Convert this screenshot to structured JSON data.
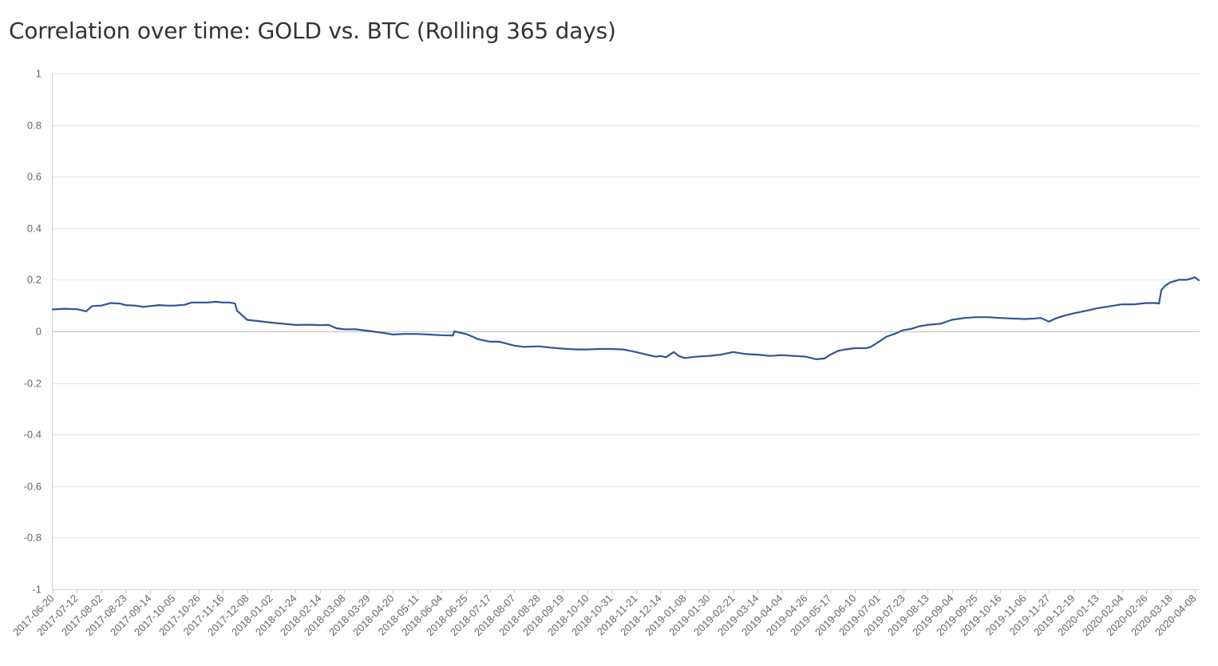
{
  "chart_data": {
    "type": "line",
    "title": "Correlation over time: GOLD vs. BTC (Rolling 365 days)",
    "xlabel": "",
    "ylabel": "",
    "ylim": [
      -1,
      1
    ],
    "yticks": [
      1,
      0.8,
      0.6,
      0.4,
      0.2,
      0,
      -0.2,
      -0.4,
      -0.6,
      -0.8,
      -1
    ],
    "ytick_labels": [
      "1",
      "0.8",
      "0.6",
      "0.4",
      "0.2",
      "0",
      "-0.2",
      "-0.4",
      "-0.6",
      "-0.8",
      "-1"
    ],
    "grid": true,
    "legend": "none",
    "x_range": [
      "2017-06-20",
      "2020-04-14"
    ],
    "xtick_labels": [
      "2017-06-20",
      "2017-07-12",
      "2017-08-02",
      "2017-08-23",
      "2017-09-14",
      "2017-10-05",
      "2017-10-26",
      "2017-11-16",
      "2017-12-08",
      "2018-01-02",
      "2018-01-24",
      "2018-02-14",
      "2018-03-08",
      "2018-03-29",
      "2018-04-20",
      "2018-05-11",
      "2018-06-04",
      "2018-06-25",
      "2018-07-17",
      "2018-08-07",
      "2018-08-28",
      "2018-09-19",
      "2018-10-10",
      "2018-10-31",
      "2018-11-21",
      "2018-12-14",
      "2019-01-08",
      "2019-01-30",
      "2019-02-21",
      "2019-03-14",
      "2019-04-04",
      "2019-04-26",
      "2019-05-17",
      "2019-06-10",
      "2019-07-01",
      "2019-07-23",
      "2019-08-13",
      "2019-09-04",
      "2019-09-25",
      "2019-10-16",
      "2019-11-06",
      "2019-11-27",
      "2019-12-19",
      "2020-01-13",
      "2020-02-04",
      "2020-02-26",
      "2020-03-18",
      "2020-04-08"
    ],
    "series": [
      {
        "name": "GOLD vs. BTC",
        "color": "#2f5597",
        "x": [
          "2017-06-20",
          "2017-07-01",
          "2017-07-12",
          "2017-07-20",
          "2017-07-25",
          "2017-08-02",
          "2017-08-10",
          "2017-08-18",
          "2017-08-23",
          "2017-09-01",
          "2017-09-08",
          "2017-09-14",
          "2017-09-22",
          "2017-09-29",
          "2017-10-05",
          "2017-10-14",
          "2017-10-20",
          "2017-10-26",
          "2017-11-03",
          "2017-11-10",
          "2017-11-16",
          "2017-11-22",
          "2017-11-27",
          "2017-11-29",
          "2017-12-08",
          "2017-12-20",
          "2018-01-02",
          "2018-01-12",
          "2018-01-24",
          "2018-02-05",
          "2018-02-14",
          "2018-02-22",
          "2018-03-01",
          "2018-03-08",
          "2018-03-18",
          "2018-03-29",
          "2018-04-10",
          "2018-04-20",
          "2018-04-30",
          "2018-05-11",
          "2018-05-22",
          "2018-06-04",
          "2018-06-14",
          "2018-06-15",
          "2018-06-25",
          "2018-07-01",
          "2018-07-06",
          "2018-07-17",
          "2018-07-25",
          "2018-08-07",
          "2018-08-15",
          "2018-08-28",
          "2018-09-08",
          "2018-09-19",
          "2018-10-01",
          "2018-10-10",
          "2018-10-20",
          "2018-10-31",
          "2018-11-10",
          "2018-11-21",
          "2018-12-01",
          "2018-12-10",
          "2018-12-14",
          "2018-12-20",
          "2018-12-28",
          "2019-01-02",
          "2019-01-08",
          "2019-01-18",
          "2019-01-30",
          "2019-02-10",
          "2019-02-21",
          "2019-03-04",
          "2019-03-14",
          "2019-03-25",
          "2019-04-04",
          "2019-04-15",
          "2019-04-26",
          "2019-05-05",
          "2019-05-12",
          "2019-05-17",
          "2019-05-25",
          "2019-06-01",
          "2019-06-10",
          "2019-06-20",
          "2019-06-24",
          "2019-07-01",
          "2019-07-08",
          "2019-07-15",
          "2019-07-23",
          "2019-07-30",
          "2019-08-06",
          "2019-08-13",
          "2019-08-25",
          "2019-09-04",
          "2019-09-15",
          "2019-09-25",
          "2019-10-05",
          "2019-10-16",
          "2019-10-25",
          "2019-11-06",
          "2019-11-15",
          "2019-11-20",
          "2019-11-27",
          "2019-12-03",
          "2019-12-10",
          "2019-12-19",
          "2020-01-01",
          "2020-01-13",
          "2020-01-25",
          "2020-02-04",
          "2020-02-15",
          "2020-02-26",
          "2020-03-05",
          "2020-03-08",
          "2020-03-10",
          "2020-03-14",
          "2020-03-18",
          "2020-03-25",
          "2020-04-01",
          "2020-04-08",
          "2020-04-14"
        ],
        "y": [
          0.085,
          0.088,
          0.086,
          0.078,
          0.098,
          0.1,
          0.11,
          0.108,
          0.102,
          0.1,
          0.095,
          0.098,
          0.102,
          0.1,
          0.1,
          0.103,
          0.112,
          0.112,
          0.112,
          0.115,
          0.112,
          0.112,
          0.108,
          0.08,
          0.045,
          0.04,
          0.034,
          0.03,
          0.025,
          0.026,
          0.024,
          0.025,
          0.012,
          0.008,
          0.008,
          0.002,
          -0.005,
          -0.012,
          -0.01,
          -0.01,
          -0.012,
          -0.015,
          -0.016,
          0.0,
          -0.01,
          -0.02,
          -0.03,
          -0.04,
          -0.04,
          -0.055,
          -0.06,
          -0.058,
          -0.063,
          -0.067,
          -0.07,
          -0.07,
          -0.068,
          -0.068,
          -0.07,
          -0.08,
          -0.09,
          -0.098,
          -0.095,
          -0.1,
          -0.08,
          -0.095,
          -0.103,
          -0.098,
          -0.095,
          -0.09,
          -0.08,
          -0.088,
          -0.09,
          -0.095,
          -0.092,
          -0.095,
          -0.098,
          -0.108,
          -0.105,
          -0.09,
          -0.075,
          -0.07,
          -0.065,
          -0.065,
          -0.06,
          -0.04,
          -0.02,
          -0.01,
          0.005,
          0.01,
          0.02,
          0.025,
          0.03,
          0.045,
          0.052,
          0.055,
          0.055,
          0.052,
          0.05,
          0.048,
          0.05,
          0.052,
          0.038,
          0.05,
          0.06,
          0.07,
          0.08,
          0.09,
          0.098,
          0.105,
          0.105,
          0.11,
          0.11,
          0.108,
          0.16,
          0.18,
          0.19,
          0.2,
          0.2,
          0.21,
          0.198
        ]
      }
    ]
  }
}
